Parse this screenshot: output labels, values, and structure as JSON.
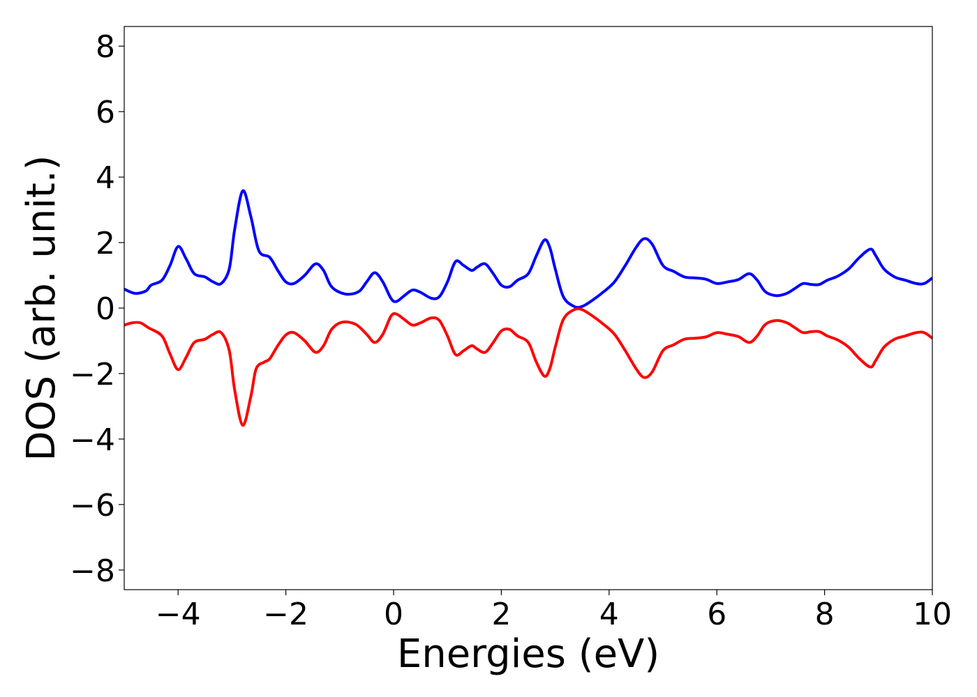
{
  "chart_data": {
    "type": "line",
    "xlabel": "Energies (eV)",
    "ylabel": "DOS (arb. unit.)",
    "xlim": [
      -5,
      10
    ],
    "ylim": [
      -8.6,
      8.6
    ],
    "xticks": [
      -4,
      -2,
      0,
      2,
      4,
      6,
      8,
      10
    ],
    "xtick_labels": [
      "−4",
      "−2",
      "0",
      "2",
      "4",
      "6",
      "8",
      "10"
    ],
    "yticks": [
      8,
      6,
      4,
      2,
      0,
      -2,
      -4,
      -6,
      -8
    ],
    "ytick_labels": [
      "8",
      "6",
      "4",
      "2",
      "0",
      "−2",
      "−4",
      "−6",
      "−8"
    ],
    "grid": false,
    "series": [
      {
        "color": "#0000ff",
        "points": [
          [
            -5.0,
            0.58
          ],
          [
            -4.8,
            0.45
          ],
          [
            -4.6,
            0.52
          ],
          [
            -4.5,
            0.7
          ],
          [
            -4.3,
            0.85
          ],
          [
            -4.15,
            1.3
          ],
          [
            -4.0,
            1.88
          ],
          [
            -3.85,
            1.5
          ],
          [
            -3.7,
            1.05
          ],
          [
            -3.5,
            0.95
          ],
          [
            -3.35,
            0.8
          ],
          [
            -3.2,
            0.75
          ],
          [
            -3.05,
            1.2
          ],
          [
            -2.95,
            2.4
          ],
          [
            -2.8,
            3.58
          ],
          [
            -2.65,
            2.8
          ],
          [
            -2.5,
            1.75
          ],
          [
            -2.3,
            1.55
          ],
          [
            -2.15,
            1.15
          ],
          [
            -2.0,
            0.8
          ],
          [
            -1.85,
            0.75
          ],
          [
            -1.65,
            1.0
          ],
          [
            -1.45,
            1.35
          ],
          [
            -1.3,
            1.15
          ],
          [
            -1.15,
            0.65
          ],
          [
            -0.9,
            0.43
          ],
          [
            -0.65,
            0.5
          ],
          [
            -0.5,
            0.8
          ],
          [
            -0.35,
            1.08
          ],
          [
            -0.2,
            0.8
          ],
          [
            -0.05,
            0.3
          ],
          [
            0.05,
            0.2
          ],
          [
            0.2,
            0.38
          ],
          [
            0.35,
            0.55
          ],
          [
            0.5,
            0.48
          ],
          [
            0.7,
            0.3
          ],
          [
            0.85,
            0.35
          ],
          [
            1.0,
            0.8
          ],
          [
            1.15,
            1.42
          ],
          [
            1.3,
            1.3
          ],
          [
            1.45,
            1.15
          ],
          [
            1.55,
            1.25
          ],
          [
            1.7,
            1.35
          ],
          [
            1.85,
            1.05
          ],
          [
            2.0,
            0.7
          ],
          [
            2.15,
            0.65
          ],
          [
            2.3,
            0.85
          ],
          [
            2.5,
            1.05
          ],
          [
            2.65,
            1.6
          ],
          [
            2.8,
            2.08
          ],
          [
            2.9,
            1.85
          ],
          [
            3.0,
            1.2
          ],
          [
            3.15,
            0.35
          ],
          [
            3.35,
            0.05
          ],
          [
            3.5,
            0.05
          ],
          [
            3.7,
            0.25
          ],
          [
            3.9,
            0.5
          ],
          [
            4.1,
            0.8
          ],
          [
            4.3,
            1.3
          ],
          [
            4.5,
            1.85
          ],
          [
            4.65,
            2.12
          ],
          [
            4.8,
            1.95
          ],
          [
            5.0,
            1.3
          ],
          [
            5.2,
            1.12
          ],
          [
            5.4,
            0.95
          ],
          [
            5.6,
            0.92
          ],
          [
            5.8,
            0.88
          ],
          [
            6.0,
            0.75
          ],
          [
            6.2,
            0.8
          ],
          [
            6.4,
            0.87
          ],
          [
            6.6,
            1.05
          ],
          [
            6.75,
            0.85
          ],
          [
            6.9,
            0.5
          ],
          [
            7.1,
            0.38
          ],
          [
            7.3,
            0.45
          ],
          [
            7.45,
            0.6
          ],
          [
            7.6,
            0.75
          ],
          [
            7.75,
            0.72
          ],
          [
            7.9,
            0.72
          ],
          [
            8.05,
            0.85
          ],
          [
            8.25,
            0.98
          ],
          [
            8.45,
            1.2
          ],
          [
            8.65,
            1.55
          ],
          [
            8.85,
            1.8
          ],
          [
            8.95,
            1.6
          ],
          [
            9.1,
            1.2
          ],
          [
            9.3,
            0.95
          ],
          [
            9.5,
            0.85
          ],
          [
            9.7,
            0.75
          ],
          [
            9.85,
            0.75
          ],
          [
            10.0,
            0.92
          ]
        ]
      },
      {
        "color": "#ff0000",
        "points": [
          [
            -5.0,
            -0.52
          ],
          [
            -4.85,
            -0.45
          ],
          [
            -4.7,
            -0.45
          ],
          [
            -4.55,
            -0.6
          ],
          [
            -4.3,
            -0.85
          ],
          [
            -4.15,
            -1.4
          ],
          [
            -4.0,
            -1.88
          ],
          [
            -3.85,
            -1.5
          ],
          [
            -3.7,
            -1.05
          ],
          [
            -3.5,
            -0.95
          ],
          [
            -3.35,
            -0.8
          ],
          [
            -3.2,
            -0.75
          ],
          [
            -3.05,
            -1.3
          ],
          [
            -2.95,
            -2.5
          ],
          [
            -2.8,
            -3.58
          ],
          [
            -2.65,
            -2.7
          ],
          [
            -2.55,
            -1.85
          ],
          [
            -2.4,
            -1.65
          ],
          [
            -2.3,
            -1.55
          ],
          [
            -2.15,
            -1.15
          ],
          [
            -2.0,
            -0.82
          ],
          [
            -1.85,
            -0.75
          ],
          [
            -1.65,
            -1.0
          ],
          [
            -1.45,
            -1.35
          ],
          [
            -1.3,
            -1.15
          ],
          [
            -1.15,
            -0.65
          ],
          [
            -0.95,
            -0.43
          ],
          [
            -0.7,
            -0.5
          ],
          [
            -0.5,
            -0.8
          ],
          [
            -0.35,
            -1.05
          ],
          [
            -0.2,
            -0.8
          ],
          [
            -0.05,
            -0.25
          ],
          [
            0.05,
            -0.18
          ],
          [
            0.2,
            -0.35
          ],
          [
            0.35,
            -0.52
          ],
          [
            0.5,
            -0.45
          ],
          [
            0.7,
            -0.3
          ],
          [
            0.85,
            -0.38
          ],
          [
            1.0,
            -0.85
          ],
          [
            1.15,
            -1.42
          ],
          [
            1.3,
            -1.3
          ],
          [
            1.45,
            -1.15
          ],
          [
            1.55,
            -1.25
          ],
          [
            1.7,
            -1.35
          ],
          [
            1.85,
            -1.05
          ],
          [
            2.0,
            -0.7
          ],
          [
            2.15,
            -0.65
          ],
          [
            2.3,
            -0.85
          ],
          [
            2.5,
            -1.05
          ],
          [
            2.65,
            -1.65
          ],
          [
            2.8,
            -2.08
          ],
          [
            2.9,
            -1.85
          ],
          [
            3.0,
            -1.2
          ],
          [
            3.15,
            -0.35
          ],
          [
            3.35,
            -0.05
          ],
          [
            3.5,
            -0.05
          ],
          [
            3.7,
            -0.25
          ],
          [
            3.9,
            -0.5
          ],
          [
            4.1,
            -0.8
          ],
          [
            4.3,
            -1.3
          ],
          [
            4.5,
            -1.85
          ],
          [
            4.65,
            -2.12
          ],
          [
            4.8,
            -1.95
          ],
          [
            5.0,
            -1.3
          ],
          [
            5.2,
            -1.12
          ],
          [
            5.4,
            -0.95
          ],
          [
            5.6,
            -0.92
          ],
          [
            5.8,
            -0.88
          ],
          [
            6.0,
            -0.75
          ],
          [
            6.2,
            -0.8
          ],
          [
            6.4,
            -0.87
          ],
          [
            6.6,
            -1.05
          ],
          [
            6.75,
            -0.85
          ],
          [
            6.9,
            -0.5
          ],
          [
            7.1,
            -0.38
          ],
          [
            7.3,
            -0.45
          ],
          [
            7.45,
            -0.6
          ],
          [
            7.6,
            -0.75
          ],
          [
            7.75,
            -0.72
          ],
          [
            7.9,
            -0.72
          ],
          [
            8.05,
            -0.85
          ],
          [
            8.25,
            -0.98
          ],
          [
            8.45,
            -1.2
          ],
          [
            8.65,
            -1.55
          ],
          [
            8.85,
            -1.8
          ],
          [
            8.95,
            -1.6
          ],
          [
            9.1,
            -1.2
          ],
          [
            9.3,
            -0.95
          ],
          [
            9.5,
            -0.85
          ],
          [
            9.7,
            -0.75
          ],
          [
            9.85,
            -0.75
          ],
          [
            10.0,
            -0.92
          ]
        ]
      }
    ]
  }
}
